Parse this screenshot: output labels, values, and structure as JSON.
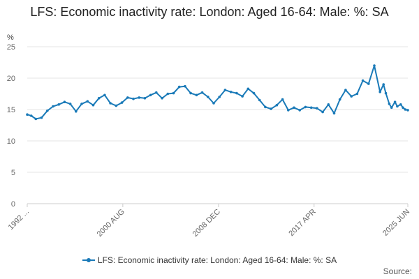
{
  "chart_data": {
    "type": "line",
    "title": "LFS: Economic inactivity rate: London: Aged 16-64: Male: %: SA",
    "ylabel": "%",
    "xlabel": "",
    "ylim": [
      0,
      25
    ],
    "yticks": [
      0,
      5,
      10,
      15,
      20,
      25
    ],
    "xlim": [
      1992.25,
      2025.42
    ],
    "xticks": [
      {
        "label": "1992 ...",
        "x": 1992.25
      },
      {
        "label": "2000 AUG",
        "x": 2000.58
      },
      {
        "label": "2008 DEC",
        "x": 2008.92
      },
      {
        "label": "2017 APR",
        "x": 2017.25
      },
      {
        "label": "2025 JUN",
        "x": 2025.42
      }
    ],
    "grid": true,
    "legend_position": "bottom",
    "color": "#1a7ab8",
    "series": [
      {
        "name": "LFS: Economic inactivity rate: London: Aged 16-64: Male: %: SA",
        "x": [
          1992.25,
          1992.6,
          1993.0,
          1993.5,
          1994.0,
          1994.5,
          1995.0,
          1995.5,
          1996.0,
          1996.5,
          1997.0,
          1997.5,
          1998.0,
          1998.5,
          1999.0,
          1999.5,
          2000.0,
          2000.5,
          2001.0,
          2001.5,
          2002.0,
          2002.5,
          2003.0,
          2003.5,
          2004.0,
          2004.5,
          2005.0,
          2005.5,
          2006.0,
          2006.5,
          2007.0,
          2007.5,
          2008.0,
          2008.5,
          2009.0,
          2009.5,
          2010.0,
          2010.5,
          2011.0,
          2011.5,
          2012.0,
          2012.5,
          2013.0,
          2013.5,
          2014.0,
          2014.5,
          2015.0,
          2015.5,
          2016.0,
          2016.5,
          2017.0,
          2017.5,
          2018.0,
          2018.5,
          2019.0,
          2019.5,
          2020.0,
          2020.5,
          2021.0,
          2021.5,
          2022.0,
          2022.5,
          2023.0,
          2023.3,
          2023.5,
          2023.8,
          2024.0,
          2024.3,
          2024.5,
          2024.8,
          2025.0,
          2025.2,
          2025.42
        ],
        "values": [
          14.2,
          14.0,
          13.5,
          13.7,
          14.8,
          15.5,
          15.8,
          16.2,
          15.9,
          14.7,
          15.9,
          16.3,
          15.7,
          16.8,
          17.3,
          16.0,
          15.6,
          16.1,
          16.9,
          16.7,
          16.9,
          16.8,
          17.3,
          17.7,
          16.8,
          17.5,
          17.6,
          18.6,
          18.7,
          17.6,
          17.3,
          17.7,
          17.0,
          16.0,
          17.0,
          18.1,
          17.8,
          17.6,
          17.1,
          18.3,
          17.6,
          16.5,
          15.4,
          15.1,
          15.7,
          16.6,
          14.9,
          15.3,
          14.9,
          15.4,
          15.3,
          15.2,
          14.6,
          15.8,
          14.4,
          16.6,
          18.1,
          17.1,
          17.5,
          19.6,
          19.1,
          22.0,
          17.8,
          19.0,
          17.6,
          15.9,
          15.3,
          16.2,
          15.5,
          15.8,
          15.3,
          15.0,
          14.9
        ]
      }
    ]
  },
  "legend": {
    "label": "LFS: Economic inactivity rate: London: Aged 16-64: Male: %: SA"
  },
  "source": {
    "label": "Source:"
  }
}
